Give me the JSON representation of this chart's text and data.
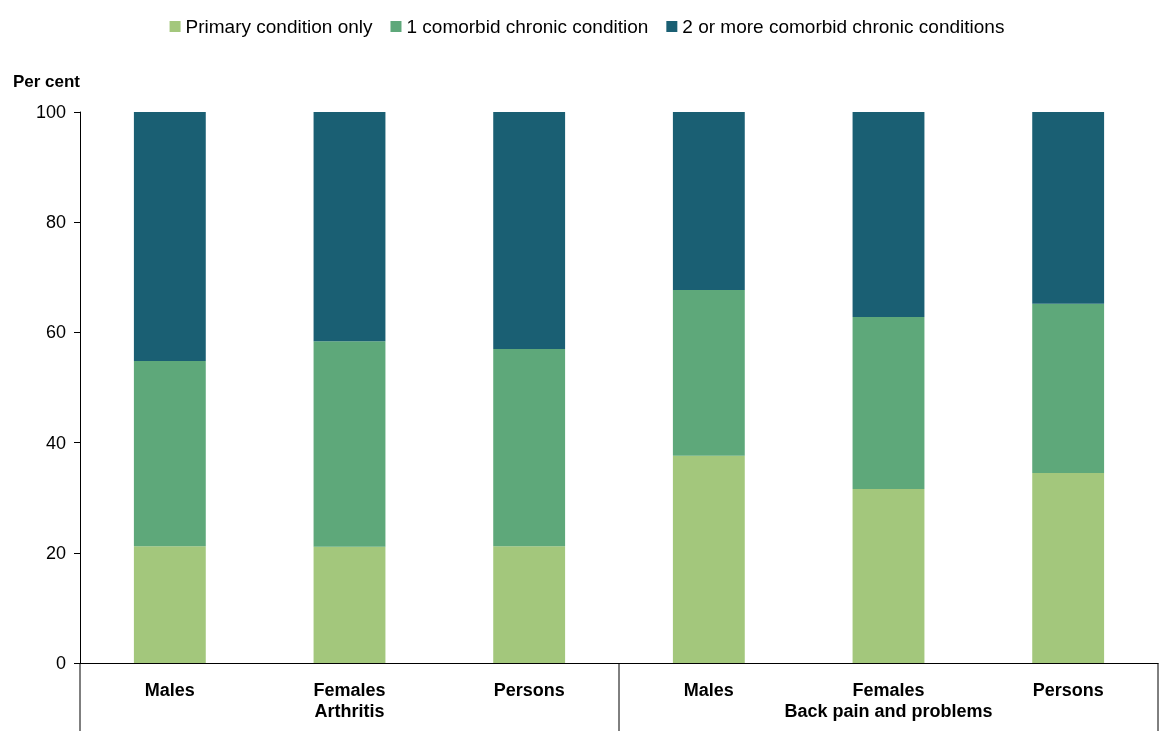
{
  "chart_data": {
    "type": "bar",
    "stacked": true,
    "ylabel": "Per cent",
    "categories": [
      "Males",
      "Females",
      "Persons",
      "Males",
      "Females",
      "Persons"
    ],
    "annotations": [
      "Arthritis",
      "Back pain and problems"
    ],
    "series": [
      {
        "name": "Primary condition only",
        "color": "#a3c77c",
        "values": [
          21.2,
          21.1,
          21.2,
          37.6,
          31.6,
          34.5
        ]
      },
      {
        "name": "1 comorbid chronic condition",
        "color": "#5ea87a",
        "values": [
          33.6,
          37.3,
          35.8,
          30.1,
          31.2,
          30.7
        ]
      },
      {
        "name": "2 or more comorbid chronic conditions",
        "color": "#1a5f73",
        "values": [
          45.2,
          41.6,
          43.0,
          32.3,
          37.2,
          34.8
        ]
      }
    ],
    "ylim": [
      0,
      100
    ],
    "yticks": [
      0,
      20,
      40,
      60,
      80,
      100
    ],
    "grid": false,
    "legend": "top"
  }
}
